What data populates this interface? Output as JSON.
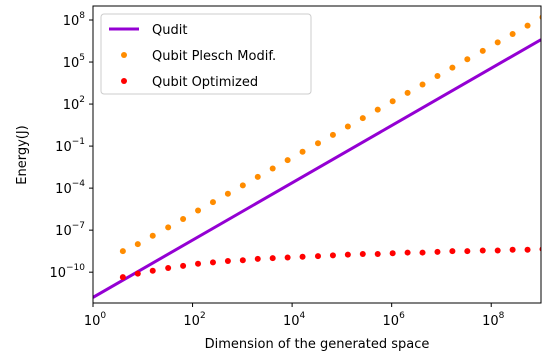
{
  "chart_data": {
    "type": "line",
    "xlabel": "Dimension of the generated space",
    "ylabel": "Energy(J)",
    "xscale": "log",
    "yscale": "log",
    "xlim_log10": [
      0,
      9
    ],
    "ylim_log10": [
      -12.2,
      9
    ],
    "x_ticks": [
      {
        "base": "10",
        "exp": "0"
      },
      {
        "base": "10",
        "exp": "2"
      },
      {
        "base": "10",
        "exp": "4"
      },
      {
        "base": "10",
        "exp": "6"
      },
      {
        "base": "10",
        "exp": "8"
      }
    ],
    "y_ticks": [
      {
        "base": "10",
        "exp": "−10"
      },
      {
        "base": "10",
        "exp": "−7"
      },
      {
        "base": "10",
        "exp": "−4"
      },
      {
        "base": "10",
        "exp": "−1"
      },
      {
        "base": "10",
        "exp": "2"
      },
      {
        "base": "10",
        "exp": "5"
      },
      {
        "base": "10",
        "exp": "8"
      }
    ],
    "legend_position": "top-left",
    "series": [
      {
        "name": "Qudit",
        "style": "line",
        "color": "#9400d3",
        "points_log10": [
          [
            0,
            -11.8
          ],
          [
            9,
            6.6
          ]
        ]
      },
      {
        "name": "Qubit Plesch Modif.",
        "style": "dots",
        "color": "#ff8c00",
        "x_log10": [
          0.6,
          0.9,
          1.2,
          1.51,
          1.81,
          2.11,
          2.41,
          2.71,
          3.01,
          3.31,
          3.61,
          3.91,
          4.21,
          4.52,
          4.82,
          5.12,
          5.42,
          5.72,
          6.02,
          6.32,
          6.62,
          6.92,
          7.22,
          7.52,
          7.83,
          8.13,
          8.43,
          8.73,
          9.03
        ],
        "y_log10": [
          -8.5,
          -8.0,
          -7.4,
          -6.8,
          -6.2,
          -5.6,
          -5.0,
          -4.4,
          -3.8,
          -3.2,
          -2.6,
          -2.0,
          -1.4,
          -0.8,
          -0.2,
          0.4,
          1.0,
          1.6,
          2.2,
          2.8,
          3.4,
          4.0,
          4.6,
          5.2,
          5.8,
          6.4,
          7.0,
          7.6,
          8.2
        ]
      },
      {
        "name": "Qubit Optimized",
        "style": "dots",
        "color": "#ff0000",
        "x_log10": [
          0.6,
          0.9,
          1.2,
          1.51,
          1.81,
          2.11,
          2.41,
          2.71,
          3.01,
          3.31,
          3.61,
          3.91,
          4.21,
          4.52,
          4.82,
          5.12,
          5.42,
          5.72,
          6.02,
          6.32,
          6.62,
          6.92,
          7.22,
          7.52,
          7.83,
          8.13,
          8.43,
          8.73,
          9.03
        ],
        "y_log10": [
          -10.35,
          -10.1,
          -9.9,
          -9.7,
          -9.55,
          -9.4,
          -9.3,
          -9.2,
          -9.15,
          -9.05,
          -9.0,
          -8.95,
          -8.9,
          -8.85,
          -8.8,
          -8.75,
          -8.7,
          -8.7,
          -8.65,
          -8.6,
          -8.6,
          -8.55,
          -8.5,
          -8.5,
          -8.45,
          -8.45,
          -8.4,
          -8.4,
          -8.35
        ]
      }
    ]
  }
}
